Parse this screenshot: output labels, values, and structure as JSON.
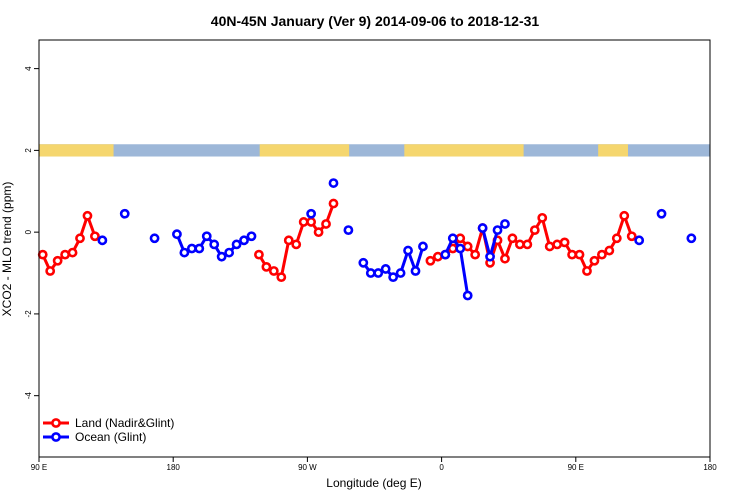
{
  "chart_data": {
    "type": "line",
    "title": "40N-45N January (Ver 9)   2014-09-06 to 2018-12-31",
    "xlabel": "Longitude (deg E)",
    "ylabel": "XCO2 - MLO trend (ppm)",
    "xlim": [
      -90,
      360
    ],
    "ylim": [
      -5.5,
      4.7
    ],
    "x_ticks": [
      {
        "value": -90,
        "label": "90 E"
      },
      {
        "value": 0,
        "label": "180"
      },
      {
        "value": 90,
        "label": "90 W"
      },
      {
        "value": 180,
        "label": "0"
      },
      {
        "value": 270,
        "label": "90 E"
      },
      {
        "value": 360,
        "label": "180"
      }
    ],
    "y_ticks": [
      {
        "value": -4,
        "label": "-4"
      },
      {
        "value": -2,
        "label": "-2"
      },
      {
        "value": 0,
        "label": "0"
      },
      {
        "value": 2,
        "label": "2"
      },
      {
        "value": 4,
        "label": "4"
      }
    ],
    "land_ocean_bar": {
      "y_range": [
        1.85,
        2.15
      ],
      "land_color": "#f5d66e",
      "ocean_color": "#9db7d8",
      "land_segments": [
        [
          -90,
          -40
        ],
        [
          58,
          118
        ],
        [
          155,
          235
        ],
        [
          285,
          305
        ]
      ]
    },
    "legend": {
      "position": "bottom-left"
    },
    "series": [
      {
        "name": "Land (Nadir&Glint)",
        "color": "#ff0000",
        "segments": [
          [
            [
              -87.5,
              -0.55
            ],
            [
              -82.5,
              -0.95
            ],
            [
              -77.5,
              -0.7
            ],
            [
              -72.5,
              -0.55
            ],
            [
              -67.5,
              -0.5
            ],
            [
              -62.5,
              -0.15
            ],
            [
              -57.5,
              0.4
            ],
            [
              -52.5,
              -0.1
            ]
          ],
          [
            [
              57.5,
              -0.55
            ],
            [
              62.5,
              -0.85
            ],
            [
              67.5,
              -0.95
            ],
            [
              72.5,
              -1.1
            ],
            [
              77.5,
              -0.2
            ],
            [
              82.5,
              -0.3
            ],
            [
              87.5,
              0.25
            ],
            [
              92.5,
              0.25
            ],
            [
              97.5,
              0.0
            ],
            [
              102.5,
              0.2
            ],
            [
              107.5,
              0.7
            ]
          ],
          [
            [
              172.5,
              -0.7
            ],
            [
              177.5,
              -0.6
            ],
            [
              182.5,
              -0.55
            ],
            [
              187.5,
              -0.4
            ],
            [
              192.5,
              -0.15
            ],
            [
              197.5,
              -0.35
            ],
            [
              202.5,
              -0.55
            ],
            [
              207.5,
              0.1
            ],
            [
              212.5,
              -0.75
            ],
            [
              217.5,
              -0.2
            ],
            [
              222.5,
              -0.65
            ],
            [
              227.5,
              -0.15
            ],
            [
              232.5,
              -0.3
            ],
            [
              237.5,
              -0.3
            ],
            [
              242.5,
              0.05
            ],
            [
              247.5,
              0.35
            ],
            [
              252.5,
              -0.35
            ],
            [
              257.5,
              -0.3
            ],
            [
              262.5,
              -0.25
            ],
            [
              267.5,
              -0.55
            ],
            [
              272.5,
              -0.55
            ],
            [
              277.5,
              -0.95
            ],
            [
              282.5,
              -0.7
            ],
            [
              287.5,
              -0.55
            ],
            [
              292.5,
              -0.45
            ],
            [
              297.5,
              -0.15
            ],
            [
              302.5,
              0.4
            ],
            [
              307.5,
              -0.1
            ]
          ]
        ]
      },
      {
        "name": "Ocean (Glint)",
        "color": "#0000ff",
        "segments": [
          [
            [
              -47.5,
              -0.2
            ]
          ],
          [
            [
              -32.5,
              0.45
            ]
          ],
          [
            [
              -12.5,
              -0.15
            ]
          ],
          [
            [
              2.5,
              -0.05
            ],
            [
              7.5,
              -0.5
            ],
            [
              12.5,
              -0.4
            ],
            [
              17.5,
              -0.4
            ],
            [
              22.5,
              -0.1
            ],
            [
              27.5,
              -0.3
            ],
            [
              32.5,
              -0.6
            ],
            [
              37.5,
              -0.5
            ],
            [
              42.5,
              -0.3
            ],
            [
              47.5,
              -0.2
            ],
            [
              52.5,
              -0.1
            ]
          ],
          [
            [
              92.5,
              0.45
            ]
          ],
          [
            [
              107.5,
              1.2
            ]
          ],
          [
            [
              117.5,
              0.05
            ]
          ],
          [
            [
              127.5,
              -0.75
            ],
            [
              132.5,
              -1.0
            ],
            [
              137.5,
              -1.0
            ],
            [
              142.5,
              -0.9
            ],
            [
              147.5,
              -1.1
            ],
            [
              152.5,
              -1.0
            ],
            [
              157.5,
              -0.45
            ],
            [
              162.5,
              -0.95
            ],
            [
              167.5,
              -0.35
            ]
          ],
          [
            [
              182.5,
              -0.55
            ],
            [
              187.5,
              -0.15
            ],
            [
              192.5,
              -0.4
            ],
            [
              197.5,
              -1.55
            ]
          ],
          [
            [
              207.5,
              0.1
            ],
            [
              212.5,
              -0.6
            ],
            [
              217.5,
              0.05
            ],
            [
              222.5,
              0.2
            ]
          ],
          [
            [
              312.5,
              -0.2
            ]
          ],
          [
            [
              327.5,
              0.45
            ]
          ],
          [
            [
              347.5,
              -0.15
            ]
          ]
        ]
      }
    ]
  }
}
